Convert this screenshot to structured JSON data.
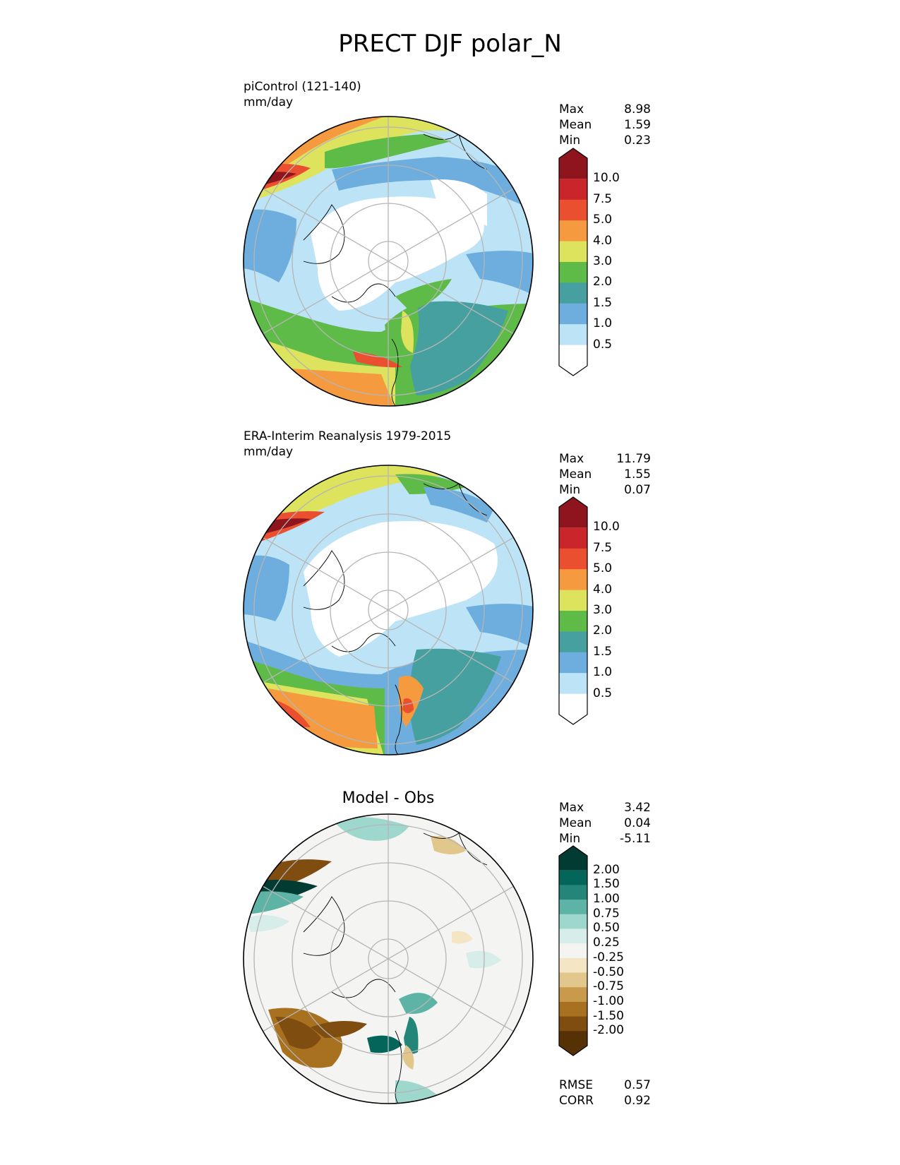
{
  "title": "PRECT DJF polar_N",
  "panels": [
    {
      "label": "piControl (121-140)",
      "units": "mm/day",
      "stats": {
        "max_label": "Max",
        "max": "8.98",
        "mean_label": "Mean",
        "mean": "1.59",
        "min_label": "Min",
        "min": "0.23"
      },
      "colorbar": {
        "levels": [
          "0.5",
          "1.0",
          "1.5",
          "2.0",
          "3.0",
          "4.0",
          "5.0",
          "7.5",
          "10.0"
        ],
        "colors": [
          "#ffffff",
          "#bde4f6",
          "#6eaede",
          "#47a0a0",
          "#5fbb47",
          "#dde35c",
          "#f59a3f",
          "#ea4f2f",
          "#c9252a",
          "#8e151d"
        ]
      }
    },
    {
      "label": "ERA-Interim Reanalysis 1979-2015",
      "units": "mm/day",
      "stats": {
        "max_label": "Max",
        "max": "11.79",
        "mean_label": "Mean",
        "mean": "1.55",
        "min_label": "Min",
        "min": "0.07"
      },
      "colorbar": {
        "levels": [
          "0.5",
          "1.0",
          "1.5",
          "2.0",
          "3.0",
          "4.0",
          "5.0",
          "7.5",
          "10.0"
        ],
        "colors": [
          "#ffffff",
          "#bde4f6",
          "#6eaede",
          "#47a0a0",
          "#5fbb47",
          "#dde35c",
          "#f59a3f",
          "#ea4f2f",
          "#c9252a",
          "#8e151d"
        ]
      }
    },
    {
      "label": "Model - Obs",
      "units": "",
      "stats": {
        "max_label": "Max",
        "max": "3.42",
        "mean_label": "Mean",
        "mean": "0.04",
        "min_label": "Min",
        "min": "-5.11"
      },
      "colorbar": {
        "levels": [
          "-2.00",
          "-1.50",
          "-1.00",
          "-0.75",
          "-0.50",
          "-0.25",
          "0.25",
          "0.50",
          "0.75",
          "1.00",
          "1.50",
          "2.00"
        ],
        "colors": [
          "#553105",
          "#7f4d10",
          "#a8711f",
          "#c99a4c",
          "#e2c78c",
          "#f4e5c5",
          "#f4f4f2",
          "#d6ede9",
          "#9ed8cc",
          "#5db3a5",
          "#238679",
          "#04655b",
          "#013b31"
        ]
      },
      "metrics": {
        "rmse_label": "RMSE",
        "rmse": "0.57",
        "corr_label": "CORR",
        "corr": "0.92"
      }
    }
  ]
}
